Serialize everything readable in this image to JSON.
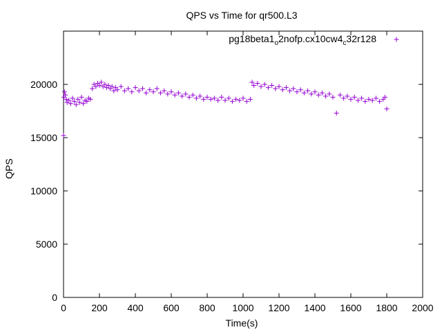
{
  "chart_data": {
    "type": "scatter",
    "title": "QPS vs Time for qr500.L3",
    "xlabel": "Time(s)",
    "ylabel": "QPS",
    "xlim": [
      0,
      2000
    ],
    "ylim": [
      0,
      25000
    ],
    "x_ticks": [
      0,
      200,
      400,
      600,
      800,
      1000,
      1200,
      1400,
      1600,
      1800,
      2000
    ],
    "y_ticks": [
      0,
      5000,
      10000,
      15000,
      20000
    ],
    "grid": false,
    "legend_position": "top-right",
    "series": [
      {
        "name": "pg18beta1_o2nofp.cx10cw4_c32r128",
        "legend_label": {
          "parts": [
            {
              "text": "pg18beta1",
              "sub": false
            },
            {
              "text": "o",
              "sub": true
            },
            {
              "text": "2nofp.cx10cw4",
              "sub": false
            },
            {
              "text": "c",
              "sub": true
            },
            {
              "text": "32r128",
              "sub": false
            }
          ]
        },
        "color": "#9400d3",
        "marker": "plus",
        "points": [
          [
            0,
            15200
          ],
          [
            2,
            18800
          ],
          [
            5,
            19300
          ],
          [
            10,
            19000
          ],
          [
            15,
            18600
          ],
          [
            20,
            18300
          ],
          [
            30,
            18500
          ],
          [
            40,
            18200
          ],
          [
            50,
            18700
          ],
          [
            60,
            18400
          ],
          [
            70,
            18100
          ],
          [
            80,
            18600
          ],
          [
            90,
            18300
          ],
          [
            100,
            18800
          ],
          [
            110,
            18200
          ],
          [
            120,
            18500
          ],
          [
            130,
            18400
          ],
          [
            140,
            18700
          ],
          [
            150,
            18600
          ],
          [
            160,
            19600
          ],
          [
            170,
            20000
          ],
          [
            180,
            19800
          ],
          [
            190,
            20100
          ],
          [
            200,
            19900
          ],
          [
            210,
            20200
          ],
          [
            220,
            19800
          ],
          [
            230,
            20000
          ],
          [
            240,
            19700
          ],
          [
            250,
            19900
          ],
          [
            260,
            19600
          ],
          [
            270,
            19800
          ],
          [
            280,
            19400
          ],
          [
            290,
            19700
          ],
          [
            300,
            19500
          ],
          [
            320,
            19800
          ],
          [
            340,
            19400
          ],
          [
            360,
            19600
          ],
          [
            380,
            19300
          ],
          [
            400,
            19700
          ],
          [
            420,
            19400
          ],
          [
            440,
            19600
          ],
          [
            460,
            19200
          ],
          [
            480,
            19500
          ],
          [
            500,
            19300
          ],
          [
            520,
            19600
          ],
          [
            540,
            19200
          ],
          [
            560,
            19400
          ],
          [
            580,
            19100
          ],
          [
            600,
            19300
          ],
          [
            620,
            19000
          ],
          [
            640,
            19200
          ],
          [
            660,
            18900
          ],
          [
            680,
            19100
          ],
          [
            700,
            18800
          ],
          [
            720,
            19000
          ],
          [
            740,
            18700
          ],
          [
            760,
            18900
          ],
          [
            780,
            18600
          ],
          [
            800,
            18800
          ],
          [
            820,
            18600
          ],
          [
            840,
            18700
          ],
          [
            860,
            18500
          ],
          [
            880,
            18800
          ],
          [
            900,
            18500
          ],
          [
            920,
            18700
          ],
          [
            940,
            18400
          ],
          [
            960,
            18600
          ],
          [
            980,
            18500
          ],
          [
            1000,
            18700
          ],
          [
            1020,
            18400
          ],
          [
            1040,
            18600
          ],
          [
            1050,
            20200
          ],
          [
            1060,
            19900
          ],
          [
            1080,
            20100
          ],
          [
            1100,
            19800
          ],
          [
            1120,
            20000
          ],
          [
            1140,
            19700
          ],
          [
            1160,
            19900
          ],
          [
            1180,
            19600
          ],
          [
            1200,
            19800
          ],
          [
            1220,
            19500
          ],
          [
            1240,
            19700
          ],
          [
            1260,
            19400
          ],
          [
            1280,
            19600
          ],
          [
            1300,
            19300
          ],
          [
            1320,
            19500
          ],
          [
            1340,
            19200
          ],
          [
            1360,
            19400
          ],
          [
            1380,
            19100
          ],
          [
            1400,
            19300
          ],
          [
            1420,
            19000
          ],
          [
            1440,
            19200
          ],
          [
            1460,
            18900
          ],
          [
            1480,
            19100
          ],
          [
            1500,
            18800
          ],
          [
            1520,
            17300
          ],
          [
            1540,
            19000
          ],
          [
            1560,
            18700
          ],
          [
            1580,
            18900
          ],
          [
            1600,
            18600
          ],
          [
            1620,
            18800
          ],
          [
            1640,
            18500
          ],
          [
            1660,
            18700
          ],
          [
            1680,
            18400
          ],
          [
            1700,
            18600
          ],
          [
            1720,
            18500
          ],
          [
            1740,
            18700
          ],
          [
            1760,
            18400
          ],
          [
            1780,
            18600
          ],
          [
            1790,
            18800
          ],
          [
            1800,
            17700
          ]
        ]
      }
    ]
  }
}
